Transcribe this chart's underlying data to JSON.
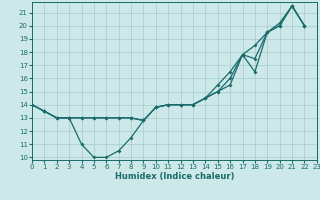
{
  "xlabel": "Humidex (Indice chaleur)",
  "ylabel": "",
  "background_color": "#cce8e8",
  "grid_color": "#aed0d0",
  "line_color": "#1a6b6b",
  "x_values": [
    0,
    1,
    2,
    3,
    4,
    5,
    6,
    7,
    8,
    9,
    10,
    11,
    12,
    13,
    14,
    15,
    16,
    17,
    18,
    19,
    20,
    21,
    22,
    23
  ],
  "line1_dip": [
    14.0,
    13.5,
    13.0,
    13.0,
    11.0,
    10.0,
    10.0,
    10.5,
    11.5,
    12.8,
    13.8,
    14.0,
    14.0,
    14.0,
    14.5,
    15.0,
    15.5,
    17.8,
    16.5,
    null,
    null,
    null,
    null,
    null
  ],
  "line2_upper": [
    14.0,
    null,
    null,
    13.0,
    null,
    null,
    null,
    null,
    null,
    null,
    null,
    null,
    null,
    null,
    14.5,
    15.0,
    16.0,
    17.8,
    18.5,
    19.5,
    20.0,
    21.5,
    20.0,
    null
  ],
  "line3_mid": [
    14.0,
    null,
    null,
    13.0,
    null,
    null,
    null,
    null,
    null,
    null,
    null,
    null,
    null,
    null,
    14.5,
    15.5,
    16.5,
    null,
    17.5,
    19.5,
    20.2,
    21.5,
    20.0,
    null
  ],
  "line1_full": [
    14.0,
    13.5,
    13.0,
    13.0,
    11.0,
    10.0,
    10.0,
    10.5,
    11.5,
    12.8,
    13.8,
    14.0,
    14.0,
    14.0,
    14.5,
    15.0,
    15.5,
    17.8,
    16.5,
    19.5,
    20.0,
    21.5,
    20.0,
    null
  ],
  "line2_full": [
    14.0,
    13.5,
    13.0,
    13.0,
    13.0,
    13.0,
    13.0,
    13.0,
    13.0,
    12.8,
    13.8,
    14.0,
    14.0,
    14.0,
    14.5,
    15.0,
    16.0,
    17.8,
    18.5,
    19.5,
    20.0,
    21.5,
    20.0,
    null
  ],
  "line3_full": [
    14.0,
    13.5,
    13.0,
    13.0,
    13.0,
    13.0,
    13.0,
    13.0,
    13.0,
    12.8,
    13.8,
    14.0,
    14.0,
    14.0,
    14.5,
    15.5,
    16.5,
    17.8,
    17.5,
    19.5,
    20.2,
    21.5,
    20.0,
    null
  ],
  "xlim": [
    0,
    23
  ],
  "ylim": [
    9.8,
    21.8
  ],
  "yticks": [
    10,
    11,
    12,
    13,
    14,
    15,
    16,
    17,
    18,
    19,
    20,
    21
  ],
  "xticks": [
    0,
    1,
    2,
    3,
    4,
    5,
    6,
    7,
    8,
    9,
    10,
    11,
    12,
    13,
    14,
    15,
    16,
    17,
    18,
    19,
    20,
    21,
    22,
    23
  ]
}
